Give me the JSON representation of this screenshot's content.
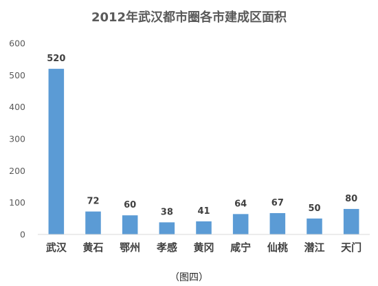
{
  "chart_data": {
    "type": "bar",
    "title": "2012年武汉都市圈各市建成区面积",
    "categories": [
      "武汉",
      "黄石",
      "鄂州",
      "孝感",
      "黄冈",
      "咸宁",
      "仙桃",
      "潜江",
      "天门"
    ],
    "values": [
      520,
      72,
      60,
      38,
      41,
      64,
      67,
      50,
      80
    ],
    "data_labels": [
      "520",
      "72",
      "60",
      "38",
      "41",
      "64",
      "67",
      "50",
      "80"
    ],
    "ylim": [
      0,
      600
    ],
    "y_ticks": [
      0,
      100,
      200,
      300,
      400,
      500,
      600
    ],
    "grid": false,
    "legend": "none",
    "bar_color": "#5B9BD5"
  },
  "caption": "（图四）"
}
